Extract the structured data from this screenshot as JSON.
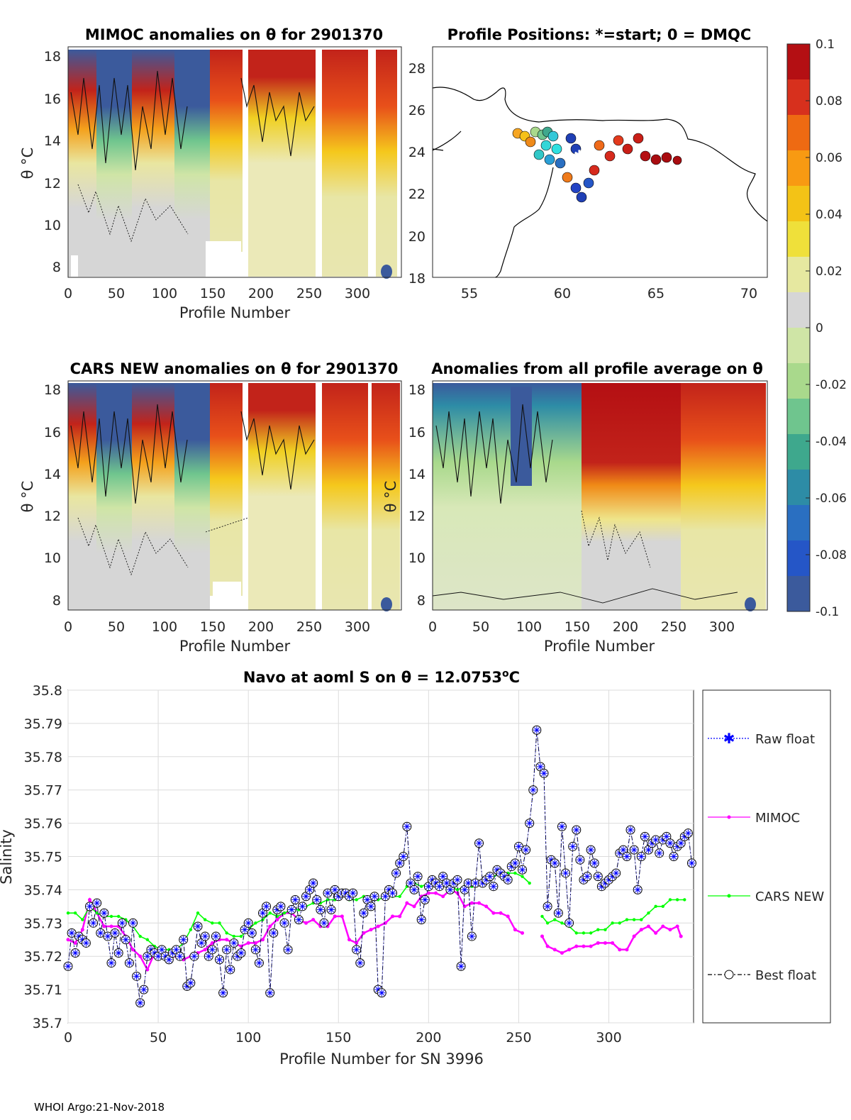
{
  "panels": {
    "mimoc": {
      "title": "MIMOC anomalies on θ  for 2901370",
      "xlabel": "Profile Number",
      "ylabel": "θ °C",
      "xticks": [
        "0",
        "50",
        "100",
        "150",
        "200",
        "250",
        "300"
      ],
      "yticks": [
        "8",
        "10",
        "12",
        "14",
        "16",
        "18"
      ]
    },
    "map": {
      "title": "Profile Positions: *=start; 0 = DMQC",
      "xticks": [
        "55",
        "60",
        "65",
        "70"
      ],
      "yticks": [
        "18",
        "20",
        "22",
        "24",
        "26",
        "28"
      ]
    },
    "cars": {
      "title": "CARS NEW anomalies on θ for 2901370",
      "xlabel": "Profile Number",
      "ylabel": "θ °C",
      "xticks": [
        "0",
        "50",
        "100",
        "150",
        "200",
        "250",
        "300"
      ],
      "yticks": [
        "8",
        "10",
        "12",
        "14",
        "16",
        "18"
      ]
    },
    "allavg": {
      "title": "Anomalies from all profile average on θ",
      "xlabel": "Profile Number",
      "ylabel": "θ °C",
      "xticks": [
        "0",
        "50",
        "100",
        "150",
        "200",
        "250",
        "300"
      ],
      "yticks": [
        "8",
        "10",
        "12",
        "14",
        "16",
        "18"
      ]
    }
  },
  "colorbar": {
    "ticks": [
      "0.1",
      "0.08",
      "0.06",
      "0.04",
      "0.02",
      "0",
      "-0.02",
      "-0.04",
      "-0.06",
      "-0.08",
      "-0.1"
    ],
    "colors": [
      "#b40f13",
      "#d7301d",
      "#ee6a12",
      "#f89a12",
      "#f3c316",
      "#efe03a",
      "#e6e8a0",
      "#d6d6d6",
      "#cfe5a6",
      "#a9d98c",
      "#6fc58e",
      "#3ea88d",
      "#2d8ca6",
      "#2a6fc1",
      "#2556c7",
      "#3b5a9c"
    ]
  },
  "chart_data": {
    "type": "line",
    "title": "Navo at aoml S on θ = 12.0753°C",
    "title_main": "Navo at aoml S on θ = 12.0753",
    "title_sup": "o",
    "title_unit": "C",
    "xlabel": "Profile Number for SN 3996",
    "ylabel": "Salinity",
    "xlim": [
      0,
      347
    ],
    "ylim": [
      35.7,
      35.8
    ],
    "xticks": [
      "0",
      "50",
      "100",
      "150",
      "200",
      "250",
      "300"
    ],
    "yticks": [
      "35.7",
      "35.71",
      "35.72",
      "35.73",
      "35.74",
      "35.75",
      "35.76",
      "35.77",
      "35.78",
      "35.79",
      "35.8"
    ],
    "legend": [
      "Raw float",
      "MIMOC",
      "CARS NEW",
      "Best float"
    ],
    "legend_placement": "outside-right",
    "colors": {
      "raw": "#0000ff",
      "mimoc": "#ff00ff",
      "cars": "#00ff00",
      "best": "#000000"
    },
    "series": {
      "best_float": {
        "x": [
          0,
          2,
          4,
          6,
          8,
          10,
          12,
          14,
          16,
          18,
          20,
          22,
          24,
          26,
          28,
          30,
          32,
          34,
          36,
          38,
          40,
          42,
          44,
          46,
          48,
          50,
          52,
          54,
          56,
          58,
          60,
          62,
          64,
          66,
          68,
          70,
          72,
          74,
          76,
          78,
          80,
          82,
          84,
          86,
          88,
          90,
          92,
          94,
          96,
          98,
          100,
          102,
          104,
          106,
          108,
          110,
          112,
          114,
          116,
          118,
          120,
          122,
          124,
          126,
          128,
          130,
          132,
          134,
          136,
          138,
          140,
          142,
          144,
          146,
          148,
          150,
          152,
          154,
          156,
          158,
          160,
          162,
          164,
          166,
          168,
          170,
          172,
          174,
          176,
          178,
          180,
          182,
          184,
          186,
          188,
          190,
          192,
          194,
          196,
          198,
          200,
          202,
          204,
          206,
          208,
          210,
          212,
          214,
          216,
          218,
          220,
          222,
          224,
          226,
          228,
          230,
          232,
          234,
          236,
          238,
          240,
          242,
          244,
          246,
          248,
          250,
          252,
          254,
          256,
          258,
          260,
          262,
          264,
          266,
          268,
          270,
          272,
          274,
          276,
          278,
          280,
          282,
          284,
          286,
          288,
          290,
          292,
          294,
          296,
          298,
          300,
          302,
          304,
          306,
          308,
          310,
          312,
          314,
          316,
          318,
          320,
          322,
          324,
          326,
          328,
          330,
          332,
          334,
          336,
          338,
          340,
          342,
          344,
          346
        ],
        "y": [
          35.717,
          35.727,
          35.721,
          35.726,
          35.725,
          35.724,
          35.735,
          35.73,
          35.736,
          35.727,
          35.733,
          35.726,
          35.718,
          35.727,
          35.721,
          35.73,
          35.725,
          35.718,
          35.73,
          35.714,
          35.706,
          35.71,
          35.72,
          35.722,
          35.721,
          35.72,
          35.722,
          35.72,
          35.719,
          35.721,
          35.722,
          35.72,
          35.725,
          35.711,
          35.712,
          35.72,
          35.729,
          35.724,
          35.726,
          35.72,
          35.722,
          35.726,
          35.719,
          35.709,
          35.722,
          35.716,
          35.724,
          35.72,
          35.721,
          35.728,
          35.73,
          35.727,
          35.722,
          35.718,
          35.733,
          35.735,
          35.709,
          35.727,
          35.734,
          35.735,
          35.73,
          35.722,
          35.734,
          35.737,
          35.731,
          35.735,
          35.738,
          35.74,
          35.742,
          35.737,
          35.734,
          35.73,
          35.739,
          35.734,
          35.74,
          35.738,
          35.739,
          35.739,
          35.738,
          35.739,
          35.722,
          35.718,
          35.733,
          35.737,
          35.735,
          35.738,
          35.71,
          35.709,
          35.738,
          35.74,
          35.739,
          35.745,
          35.748,
          35.75,
          35.759,
          35.742,
          35.74,
          35.744,
          35.731,
          35.737,
          35.741,
          35.743,
          35.742,
          35.741,
          35.744,
          35.742,
          35.74,
          35.742,
          35.743,
          35.717,
          35.74,
          35.742,
          35.726,
          35.742,
          35.754,
          35.742,
          35.743,
          35.744,
          35.741,
          35.746,
          35.745,
          35.744,
          35.743,
          35.747,
          35.748,
          35.753,
          35.746,
          35.752,
          35.76,
          35.77,
          35.788,
          35.777,
          35.775,
          35.735,
          35.749,
          35.748,
          35.733,
          35.759,
          35.745,
          35.73,
          35.753,
          35.758,
          35.749,
          35.743,
          35.744,
          35.752,
          35.748,
          35.744,
          35.741,
          35.742,
          35.743,
          35.744,
          35.745,
          35.751,
          35.752,
          35.75,
          35.758,
          35.752,
          35.74,
          35.75,
          35.756,
          35.752,
          35.754,
          35.755,
          35.751,
          35.755,
          35.756,
          35.754,
          35.75,
          35.753,
          35.754,
          35.756,
          35.757,
          35.748
        ]
      },
      "mimoc": {
        "x": [
          0,
          4,
          8,
          12,
          16,
          20,
          24,
          28,
          32,
          36,
          40,
          44,
          48,
          52,
          56,
          60,
          64,
          68,
          72,
          76,
          80,
          84,
          88,
          92,
          96,
          100,
          104,
          108,
          112,
          116,
          120,
          124,
          128,
          132,
          136,
          140,
          144,
          148,
          152,
          156,
          160,
          164,
          168,
          172,
          176,
          180,
          184,
          188,
          192,
          196,
          200,
          204,
          208,
          212,
          216,
          220,
          224,
          228,
          232,
          236,
          240,
          244,
          248,
          252,
          263,
          266,
          270,
          274,
          278,
          282,
          286,
          290,
          294,
          298,
          302,
          306,
          310,
          314,
          318,
          322,
          326,
          330,
          334,
          338,
          340
        ],
        "y": [
          35.725,
          35.724,
          35.728,
          35.737,
          35.733,
          35.729,
          35.729,
          35.729,
          35.726,
          35.722,
          35.72,
          35.716,
          35.721,
          35.721,
          35.72,
          35.72,
          35.719,
          35.72,
          35.721,
          35.722,
          35.724,
          35.725,
          35.725,
          35.724,
          35.723,
          35.724,
          35.724,
          35.725,
          35.729,
          35.731,
          35.733,
          35.733,
          35.731,
          35.73,
          35.731,
          35.729,
          35.729,
          35.732,
          35.732,
          35.725,
          35.724,
          35.727,
          35.728,
          35.729,
          35.73,
          35.732,
          35.732,
          35.736,
          35.735,
          35.738,
          35.739,
          35.739,
          35.738,
          35.74,
          35.739,
          35.735,
          35.736,
          35.736,
          35.735,
          35.733,
          35.733,
          35.732,
          35.728,
          35.727,
          35.726,
          35.723,
          35.722,
          35.721,
          35.722,
          35.723,
          35.723,
          35.723,
          35.724,
          35.724,
          35.724,
          35.722,
          35.722,
          35.726,
          35.728,
          35.729,
          35.727,
          35.729,
          35.728,
          35.729,
          35.726
        ]
      },
      "cars_new": {
        "x": [
          0,
          4,
          8,
          12,
          16,
          20,
          24,
          28,
          32,
          36,
          40,
          44,
          48,
          52,
          56,
          60,
          64,
          68,
          72,
          76,
          80,
          84,
          88,
          92,
          96,
          100,
          104,
          108,
          112,
          116,
          120,
          124,
          128,
          132,
          136,
          140,
          144,
          148,
          152,
          156,
          160,
          164,
          168,
          172,
          176,
          180,
          184,
          188,
          192,
          196,
          200,
          204,
          208,
          212,
          216,
          220,
          224,
          228,
          232,
          236,
          240,
          244,
          248,
          252,
          256,
          263,
          266,
          270,
          274,
          278,
          282,
          286,
          290,
          294,
          298,
          302,
          306,
          310,
          314,
          318,
          322,
          326,
          330,
          334,
          338,
          342
        ],
        "y": [
          35.733,
          35.733,
          35.731,
          35.735,
          35.733,
          35.732,
          35.732,
          35.732,
          35.731,
          35.729,
          35.726,
          35.725,
          35.723,
          35.722,
          35.722,
          35.722,
          35.724,
          35.728,
          35.733,
          35.731,
          35.73,
          35.73,
          35.727,
          35.726,
          35.726,
          35.728,
          35.73,
          35.731,
          35.733,
          35.732,
          35.733,
          35.734,
          35.734,
          35.735,
          35.736,
          35.736,
          35.737,
          35.737,
          35.739,
          35.737,
          35.737,
          35.738,
          35.738,
          35.737,
          35.738,
          35.738,
          35.738,
          35.741,
          35.742,
          35.741,
          35.742,
          35.742,
          35.742,
          35.741,
          35.74,
          35.741,
          35.741,
          35.742,
          35.743,
          35.744,
          35.745,
          35.745,
          35.745,
          35.744,
          35.742,
          35.732,
          35.73,
          35.731,
          35.73,
          35.729,
          35.727,
          35.727,
          35.727,
          35.728,
          35.728,
          35.73,
          35.73,
          35.731,
          35.731,
          35.731,
          35.733,
          35.735,
          35.735,
          35.737,
          35.737,
          35.737
        ]
      }
    }
  },
  "footer": "WHOI Argo:21-Nov-2018"
}
